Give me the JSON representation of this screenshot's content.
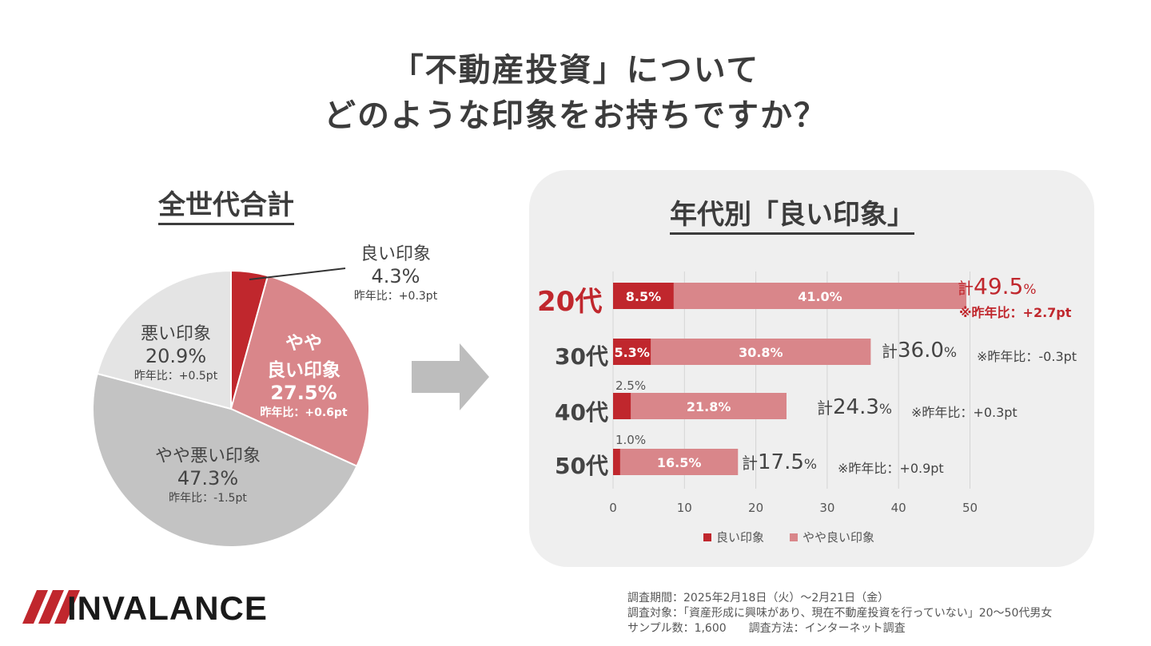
{
  "title": {
    "line1": "「不動産投資」について",
    "line2": "どのような印象をお持ちですか？"
  },
  "colors": {
    "good": "#c0272d",
    "slightly_good": "#d9868a",
    "bad": "#e4e4e4",
    "slightly_bad": "#c3c3c3",
    "dark_text": "#444444",
    "panel_bg": "#efefef"
  },
  "chart_data": [
    {
      "type": "pie",
      "title": "全世代合計",
      "slices": [
        {
          "label": "良い印象",
          "value": 4.3,
          "yoy": "昨年比：+0.3pt"
        },
        {
          "label": "やや良い印象",
          "label_line1": "やや",
          "label_line2": "良い印象",
          "value": 27.5,
          "yoy": "昨年比：+0.6pt"
        },
        {
          "label": "やや悪い印象",
          "value": 47.3,
          "yoy": "昨年比：-1.5pt"
        },
        {
          "label": "悪い印象",
          "value": 20.9,
          "yoy": "昨年比：+0.5pt"
        }
      ]
    },
    {
      "type": "bar",
      "orientation": "horizontal",
      "stacked": true,
      "title": "年代別「良い印象」",
      "categories": [
        "20代",
        "30代",
        "40代",
        "50代"
      ],
      "series": [
        {
          "name": "良い印象",
          "values": [
            8.5,
            5.3,
            2.5,
            1.0
          ],
          "labels": [
            "8.5%",
            "5.3%",
            "2.5%",
            "1.0%"
          ]
        },
        {
          "name": "やや良い印象",
          "values": [
            41.0,
            30.8,
            21.8,
            16.5
          ],
          "labels": [
            "41.0%",
            "30.8%",
            "21.8%",
            "16.5%"
          ]
        }
      ],
      "totals": [
        {
          "prefix": "計",
          "value": "49.5",
          "unit": "%",
          "yoy": "※昨年比：+2.7pt"
        },
        {
          "prefix": "計",
          "value": "36.0",
          "unit": "%",
          "yoy": "※昨年比：-0.3pt"
        },
        {
          "prefix": "計",
          "value": "24.3",
          "unit": "%",
          "yoy": "※昨年比：+0.3pt"
        },
        {
          "prefix": "計",
          "value": "17.5",
          "unit": "%",
          "yoy": "※昨年比：+0.9pt"
        }
      ],
      "xlim": [
        0,
        50
      ],
      "xticks": [
        "0",
        "10",
        "20",
        "30",
        "40",
        "50"
      ],
      "legend_position": "bottom",
      "highlight_category": "20代"
    }
  ],
  "footer": {
    "line1": "調査期間：2025年2月18日（火）～2月21日（金）",
    "line2": "調査対象：「資産形成に興味があり、現在不動産投資を行っていない」20～50代男女",
    "line3": "サンプル数：1,600　　調査方法：インターネット調査"
  },
  "logo": {
    "text": "INVALANCE"
  }
}
